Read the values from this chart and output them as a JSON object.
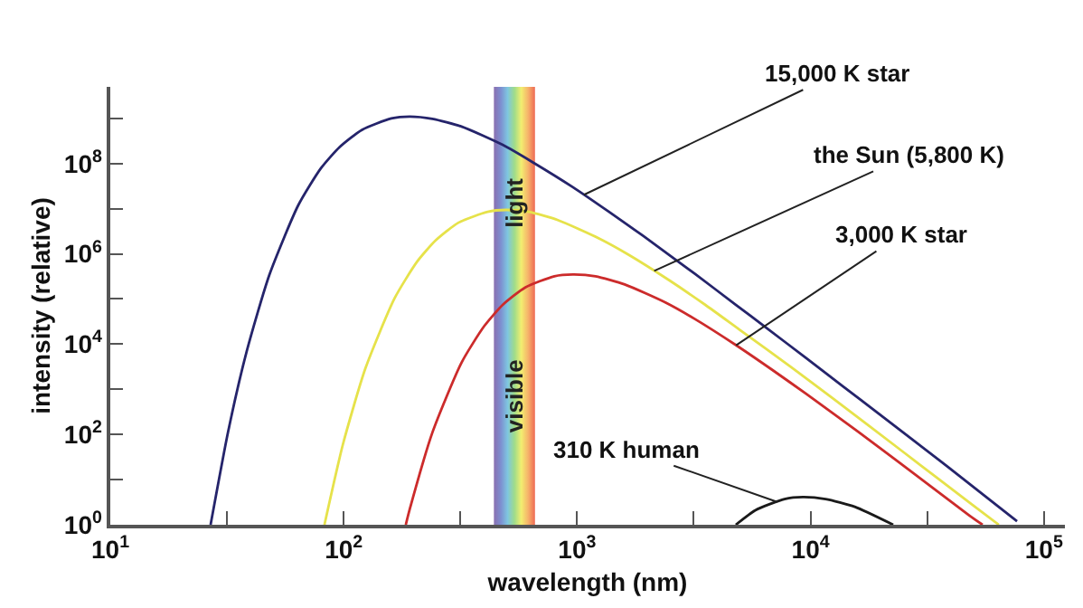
{
  "chart_data": {
    "type": "line",
    "xlabel": "wavelength (nm)",
    "ylabel": "intensity (relative)",
    "log": "xy",
    "xlim": [
      10,
      123000
    ],
    "ylim": [
      1,
      5000000000
    ],
    "xticks": [
      {
        "value": 10,
        "label": "10$^{1}$"
      },
      {
        "value": 31.6,
        "label": null
      },
      {
        "value": 100,
        "label": "10$^{2}$"
      },
      {
        "value": 316,
        "label": null
      },
      {
        "value": 1000,
        "label": "10$^{3}$"
      },
      {
        "value": 3162,
        "label": null
      },
      {
        "value": 10000,
        "label": "10$^{4}$"
      },
      {
        "value": 31623,
        "label": null
      },
      {
        "value": 100000,
        "label": "10$^{5}$"
      }
    ],
    "yticks": [
      {
        "value": 1,
        "label": "10$^{0}$"
      },
      {
        "value": 10,
        "label": null
      },
      {
        "value": 100,
        "label": "10$^{2}$"
      },
      {
        "value": 1000,
        "label": null
      },
      {
        "value": 10000,
        "label": "10$^{4}$"
      },
      {
        "value": 100000,
        "label": null
      },
      {
        "value": 1000000,
        "label": "10$^{6}$"
      },
      {
        "value": 10000000,
        "label": null
      },
      {
        "value": 100000000,
        "label": "10$^{8}$"
      },
      {
        "value": 1000000000,
        "label": null
      }
    ],
    "legend": false,
    "marker": "none",
    "line_style": "solid",
    "series": [
      {
        "name": "15,000 K star",
        "color": "#25246b",
        "x": [
          26.9,
          32.0,
          38.4,
          48.0,
          63.9,
          79.9,
          95.9,
          119.9,
          159.9,
          191.8,
          239.8,
          319.7,
          479.6,
          639.5,
          959,
          1370,
          1918,
          3197,
          4796,
          6395,
          9592,
          13703,
          19184,
          38368,
          76700
        ],
        "values": [
          1.0,
          117,
          6900,
          340000,
          12000000,
          79000000,
          230000000,
          560000000,
          1000000000,
          1100000000,
          980000000,
          660000000,
          260000000,
          110000000,
          30000000,
          8500000,
          2500000,
          360000,
          74000,
          24000,
          4900,
          1190,
          313,
          20,
          1.2
        ]
      },
      {
        "name": "the Sun (5,800 K)",
        "color": "#e6e24a",
        "x": [
          82.7,
          99.2,
          124.0,
          165.4,
          206.7,
          248.1,
          310.1,
          413.4,
          496.1,
          620.2,
          826.9,
          1240,
          1654,
          2481,
          3544,
          4961,
          8269,
          12404,
          24807,
          49614,
          64100
        ],
        "values": [
          1.0,
          60,
          2950,
          105000,
          680000,
          2000000,
          4900000,
          8500000,
          9400000,
          8500000,
          5600000,
          2200000,
          970000,
          260000,
          74000,
          21000,
          3100,
          640,
          42,
          2.7,
          1.0
        ]
      },
      {
        "name": "3,000 K star",
        "color": "#cc2b2b",
        "x": [
          184.5,
          191.8,
          239.8,
          319.7,
          399.7,
          479.6,
          599.5,
          799.3,
          959,
          1199,
          1599,
          2398,
          3197,
          4796,
          6851,
          9592,
          15987,
          23980,
          47960,
          54600
        ],
        "values": [
          1.0,
          2.2,
          110,
          3900,
          25000,
          74000,
          180000,
          320000,
          350000,
          320000,
          210000,
          83000,
          36000,
          9500,
          2700,
          790,
          115,
          24,
          1.6,
          1.0
        ]
      },
      {
        "name": "310 K human",
        "color": "#1a1a1a",
        "x": [
          4785,
          5802,
          7736,
          9283,
          11603,
          15471,
          22600
        ],
        "values": [
          1.0,
          2.1,
          3.7,
          4.1,
          3.7,
          2.5,
          1.0
        ]
      }
    ],
    "bands": [
      {
        "axis": "x",
        "from": 440,
        "to": 660,
        "label": "visible light",
        "color": [
          "#8a6fb0",
          "#7d8ed0",
          "#7fc6e0",
          "#9fdc8a",
          "#f2ee70",
          "#f6b36a",
          "#ee6a55"
        ]
      }
    ]
  }
}
